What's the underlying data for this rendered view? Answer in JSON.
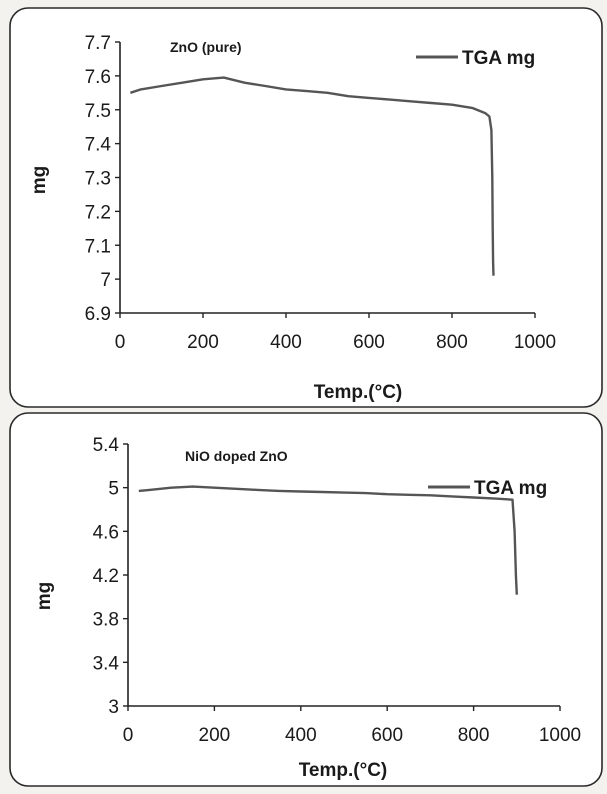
{
  "chart_data": [
    {
      "type": "line",
      "title": "ZnO (pure)",
      "xlabel": "Temp.(°C)",
      "ylabel": "mg",
      "xlim": [
        0,
        1000
      ],
      "ylim": [
        6.9,
        7.7
      ],
      "x_ticks": [
        "0",
        "200",
        "400",
        "600",
        "800",
        "1000"
      ],
      "y_ticks": [
        "6.9",
        "7",
        "7.1",
        "7.2",
        "7.3",
        "7.4",
        "7.5",
        "7.6",
        "7.7"
      ],
      "legend_position": "top-right",
      "grid": false,
      "series": [
        {
          "name": "TGA mg",
          "color": "#555555",
          "x": [
            25,
            50,
            100,
            150,
            200,
            250,
            300,
            350,
            400,
            450,
            500,
            550,
            600,
            650,
            700,
            750,
            800,
            850,
            880,
            890,
            895,
            897,
            898,
            899,
            900
          ],
          "y": [
            7.55,
            7.56,
            7.57,
            7.58,
            7.59,
            7.595,
            7.58,
            7.57,
            7.56,
            7.555,
            7.55,
            7.54,
            7.535,
            7.53,
            7.525,
            7.52,
            7.515,
            7.505,
            7.49,
            7.48,
            7.44,
            7.3,
            7.15,
            7.05,
            7.01
          ]
        }
      ]
    },
    {
      "type": "line",
      "title": "NiO doped ZnO",
      "xlabel": "Temp.(°C)",
      "ylabel": "mg",
      "xlim": [
        0,
        1000
      ],
      "ylim": [
        3,
        5.4
      ],
      "x_ticks": [
        "0",
        "200",
        "400",
        "600",
        "800",
        "1000"
      ],
      "y_ticks": [
        "3",
        "3.4",
        "3.8",
        "4.2",
        "4.6",
        "5",
        "5.4"
      ],
      "legend_position": "top-right",
      "grid": false,
      "series": [
        {
          "name": "TGA mg",
          "color": "#555555",
          "x": [
            25,
            50,
            100,
            150,
            200,
            250,
            300,
            350,
            400,
            450,
            500,
            550,
            600,
            650,
            700,
            750,
            800,
            850,
            890,
            895,
            898,
            900
          ],
          "y": [
            4.97,
            4.98,
            5.0,
            5.01,
            5.0,
            4.99,
            4.98,
            4.97,
            4.965,
            4.96,
            4.955,
            4.95,
            4.94,
            4.935,
            4.93,
            4.92,
            4.91,
            4.9,
            4.89,
            4.6,
            4.2,
            4.02
          ]
        }
      ]
    }
  ]
}
